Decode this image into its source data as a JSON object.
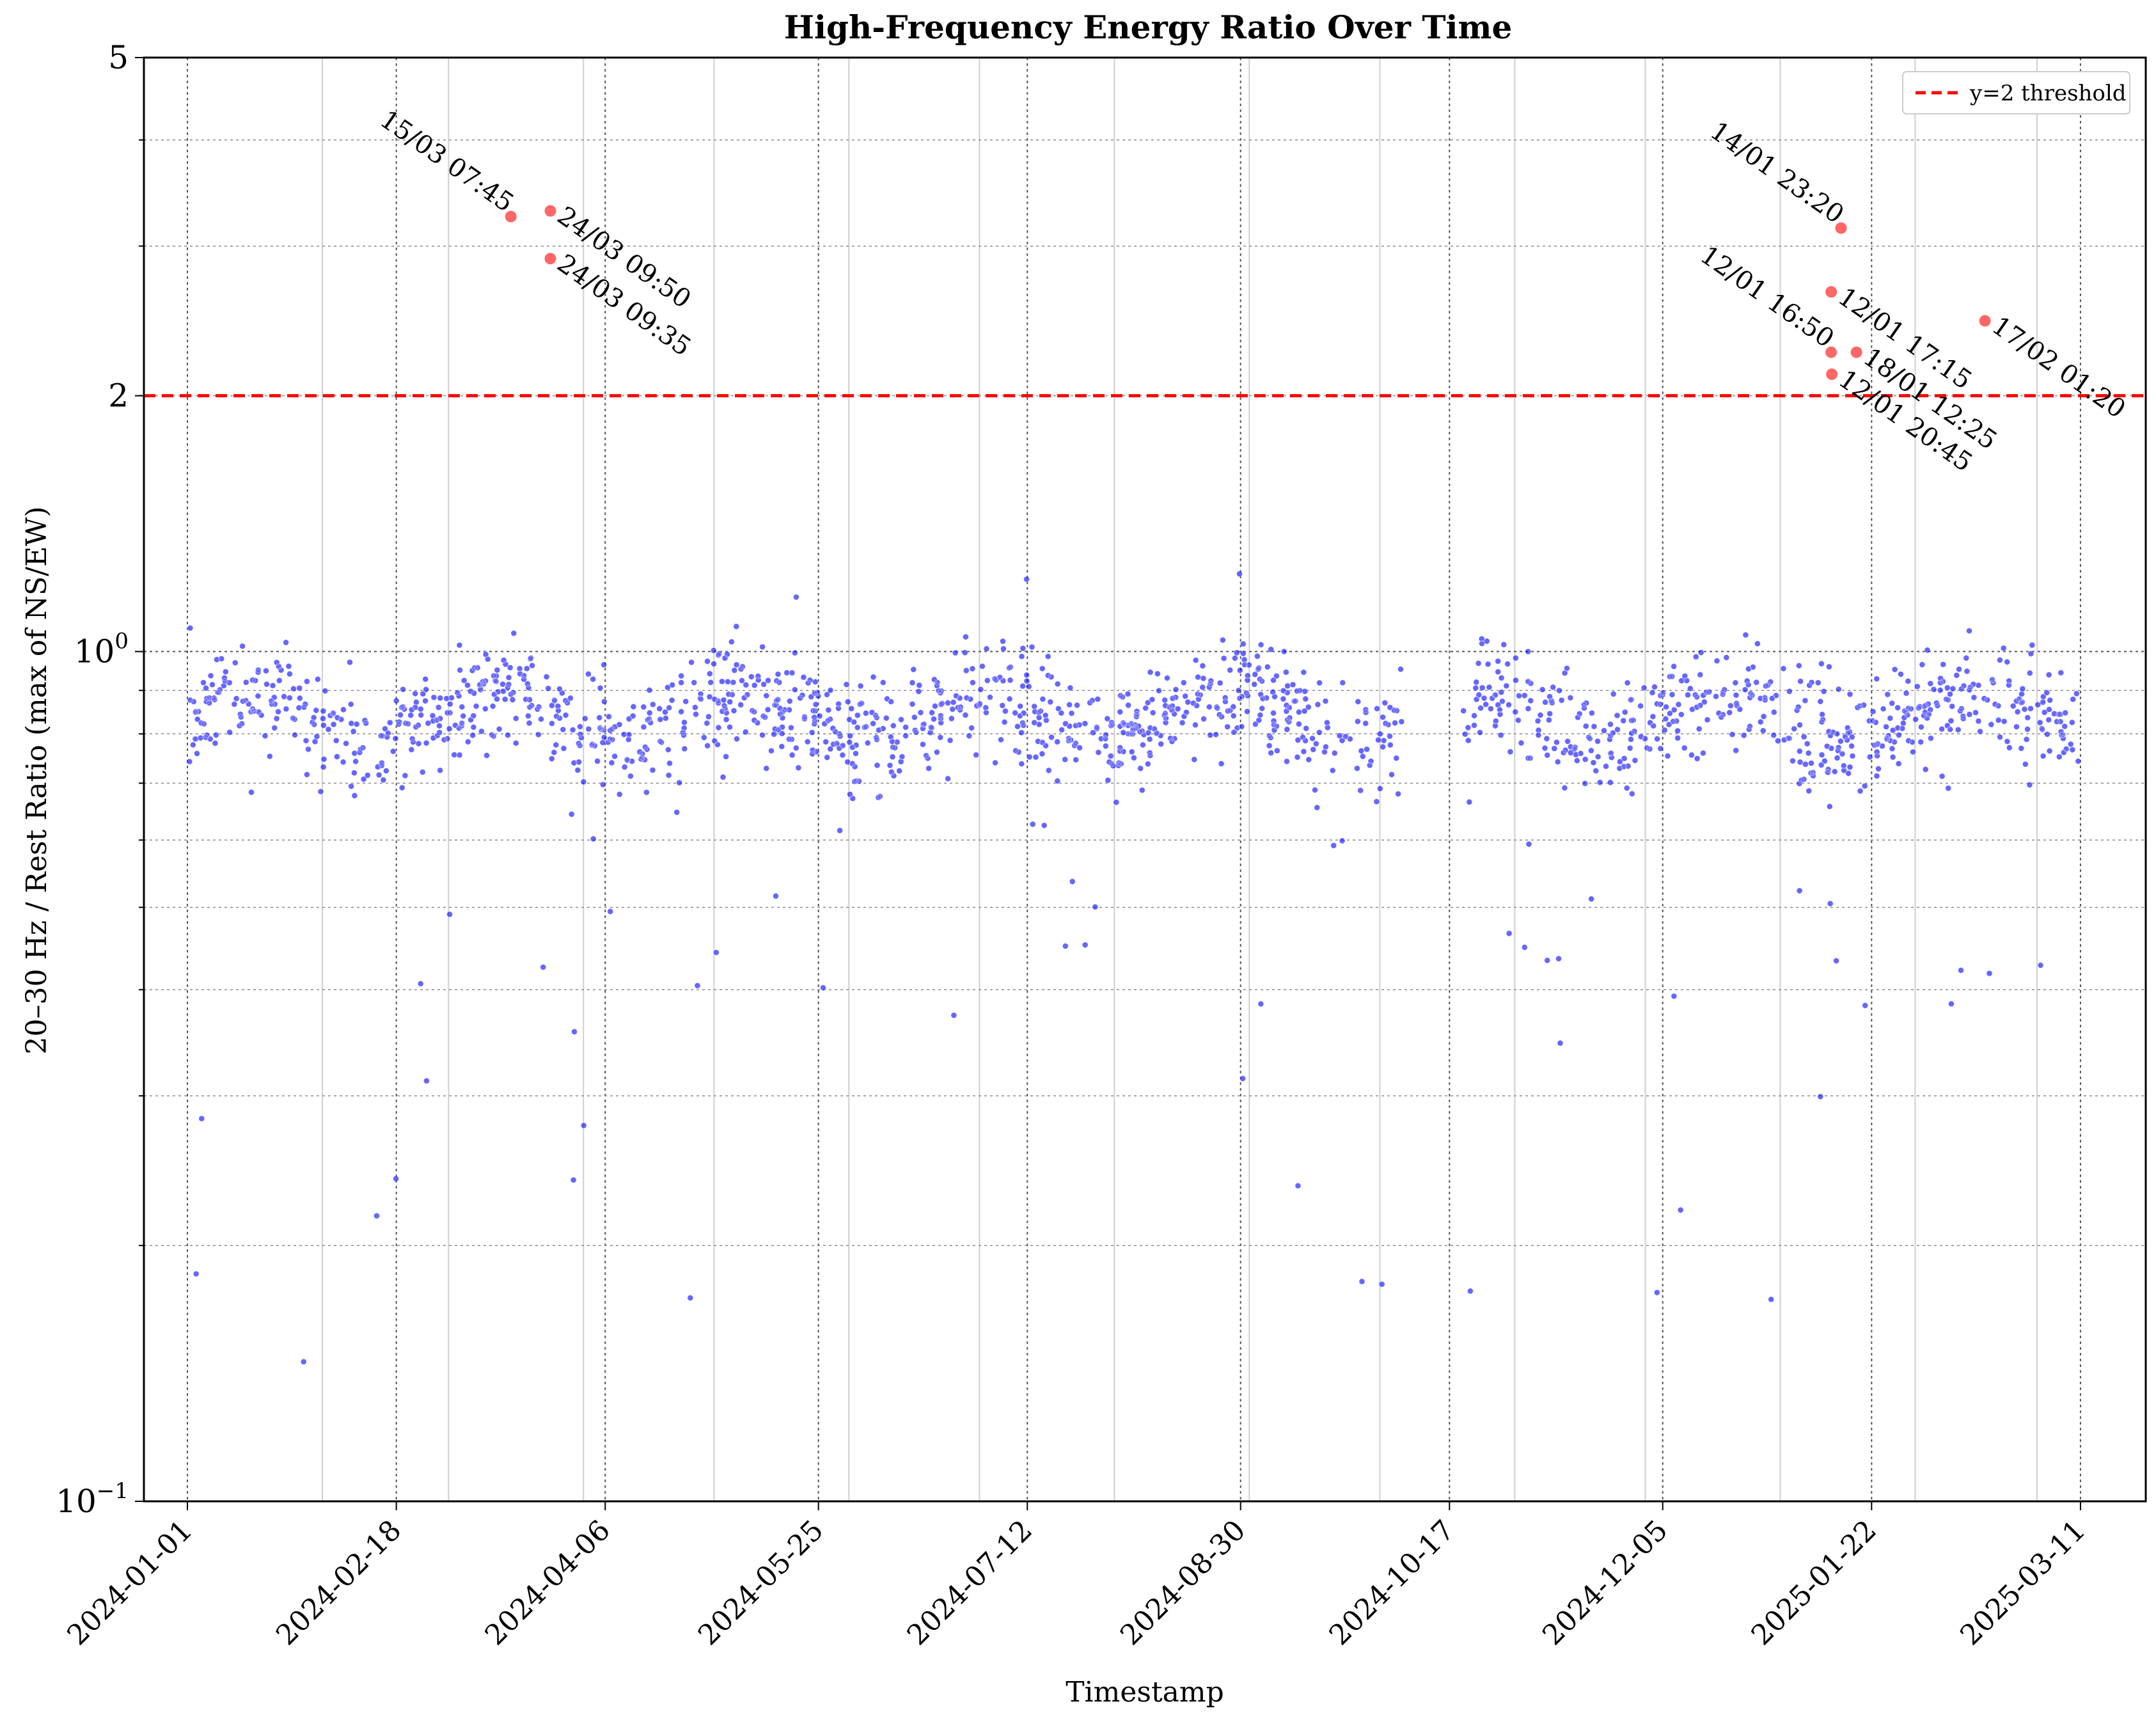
{
  "chart_data": {
    "type": "scatter",
    "title": "High-Frequency Energy Ratio Over Time",
    "xlabel": "Timestamp",
    "ylabel": "20–30 Hz / Rest Ratio (max of NS/EW)",
    "x_range": [
      "2023-12-22",
      "2025-03-26"
    ],
    "ylim": [
      0.1,
      5
    ],
    "yscale": "log",
    "x_ticks": [
      "2024-01-01",
      "2024-02-18",
      "2024-04-06",
      "2024-05-25",
      "2024-07-12",
      "2024-08-30",
      "2024-10-17",
      "2024-12-05",
      "2025-01-22",
      "2025-03-11"
    ],
    "y_tick_labels": [
      {
        "value": 0.1,
        "base": "10",
        "exp": "−1"
      },
      {
        "value": 1,
        "base": "10",
        "exp": "0"
      },
      {
        "value": 2,
        "text": "2"
      },
      {
        "value": 5,
        "text": "5"
      }
    ],
    "grid": true,
    "legend": {
      "position": "top-right",
      "entries": [
        {
          "label": "y=2 threshold",
          "color": "#ff0000",
          "style": "dashed"
        }
      ]
    },
    "threshold": {
      "y": 2,
      "color": "#ff0000"
    },
    "series": [
      {
        "kind": "background",
        "color": "#0000ff",
        "point_count_note": "dense 5-minute samples",
        "x_start": "2024-01-01",
        "x_end": "2025-03-11",
        "gap": [
          "2024-10-06",
          "2024-10-20"
        ],
        "typical_range": [
          0.6,
          1.1
        ]
      },
      {
        "kind": "exceedances",
        "color": "#ff6666",
        "points": [
          {
            "x": "2024-03-15T07:45",
            "y": 3.25,
            "label": "15/03 07:45"
          },
          {
            "x": "2024-03-24T09:50",
            "y": 3.3,
            "label": "24/03 09:50"
          },
          {
            "x": "2024-03-24T09:35",
            "y": 2.9,
            "label": "24/03 09:35"
          },
          {
            "x": "2025-01-14T23:20",
            "y": 3.15,
            "label": "14/01 23:20"
          },
          {
            "x": "2025-01-12T17:15",
            "y": 2.65,
            "label": "12/01 17:15"
          },
          {
            "x": "2025-01-12T16:50",
            "y": 2.25,
            "label": "12/01 16:50"
          },
          {
            "x": "2025-01-18T12:25",
            "y": 2.25,
            "label": "18/01 12:25"
          },
          {
            "x": "2025-01-12T20:45",
            "y": 2.12,
            "label": "12/01 20:45"
          },
          {
            "x": "2025-02-17T01:20",
            "y": 2.45,
            "label": "17/02 01:20"
          }
        ]
      }
    ]
  }
}
